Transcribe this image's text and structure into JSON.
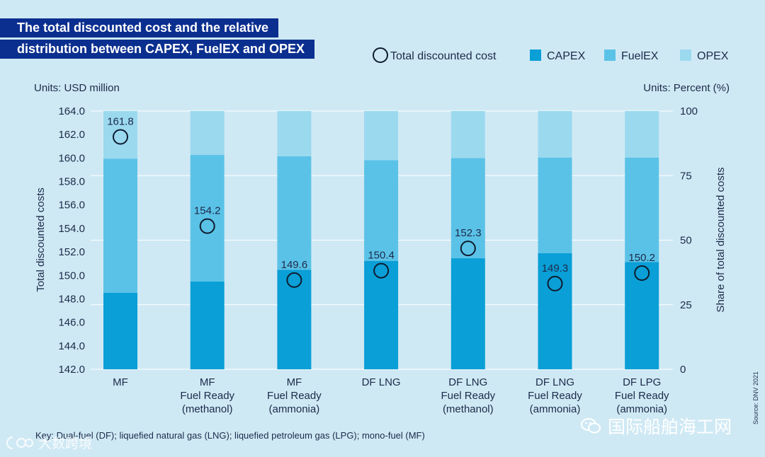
{
  "title_lines": [
    "The total discounted cost and the relative",
    "distribution between CAPEX, FuelEX and OPEX"
  ],
  "units_left": "Units: USD million",
  "units_right": "Units: Percent (%)",
  "key_note": "Key: Dual-fuel (DF); liquefied natural gas (LNG); liquefied petroleum gas (LPG); mono-fuel (MF)",
  "source": "Source: DNV 2021",
  "watermark_right": "国际船舶海工网",
  "watermark_left": "大数跨境",
  "colors": {
    "capex": "#0a9fd6",
    "fuelex": "#5bc2e7",
    "opex": "#9bd9ef",
    "circle": "#0d1b2e",
    "grid": "#ffffff",
    "text": "#1b2a4a"
  },
  "chart_data": {
    "type": "bar",
    "stacked": true,
    "categories": [
      [
        "MF"
      ],
      [
        "MF",
        "Fuel Ready",
        "(methanol)"
      ],
      [
        "MF",
        "Fuel Ready",
        "(ammonia)"
      ],
      [
        "DF LNG"
      ],
      [
        "DF LNG",
        "Fuel Ready",
        "(methanol)"
      ],
      [
        "DF LNG",
        "Fuel Ready",
        "(ammonia)"
      ],
      [
        "DF LPG",
        "Fuel Ready",
        "(ammonia)"
      ]
    ],
    "series": [
      {
        "name": "CAPEX",
        "values": [
          29.6,
          34.0,
          38.5,
          42.0,
          43.0,
          45.0,
          41.5
        ]
      },
      {
        "name": "FuelEX",
        "values": [
          52.0,
          49.0,
          44.0,
          39.0,
          38.8,
          37.0,
          40.5
        ]
      },
      {
        "name": "OPEX",
        "values": [
          18.4,
          17.0,
          17.5,
          19.0,
          18.2,
          18.0,
          18.0
        ]
      }
    ],
    "total_discounted_cost": {
      "name": "Total discounted cost",
      "values": [
        161.8,
        154.2,
        149.6,
        150.4,
        152.3,
        149.3,
        150.2
      ],
      "labels": [
        "161.8",
        "154.2",
        "149.6",
        "150.4",
        "152.3",
        "149.3",
        "150.2"
      ]
    },
    "y_left": {
      "label": "Total discounted costs",
      "range": [
        142.0,
        164.0
      ],
      "ticks": [
        "142.0",
        "144.0",
        "146.0",
        "148.0",
        "150.0",
        "152.0",
        "154.0",
        "156.0",
        "158.0",
        "160.0",
        "162.0",
        "164.0"
      ]
    },
    "y_right": {
      "label": "Share of total discounted costs",
      "range": [
        0,
        100
      ],
      "ticks": [
        "0",
        "25",
        "50",
        "75",
        "100"
      ]
    },
    "legend": {
      "position": "top-right",
      "items": [
        "Total discounted cost",
        "CAPEX",
        "FuelEX",
        "OPEX"
      ]
    },
    "grid": true
  }
}
